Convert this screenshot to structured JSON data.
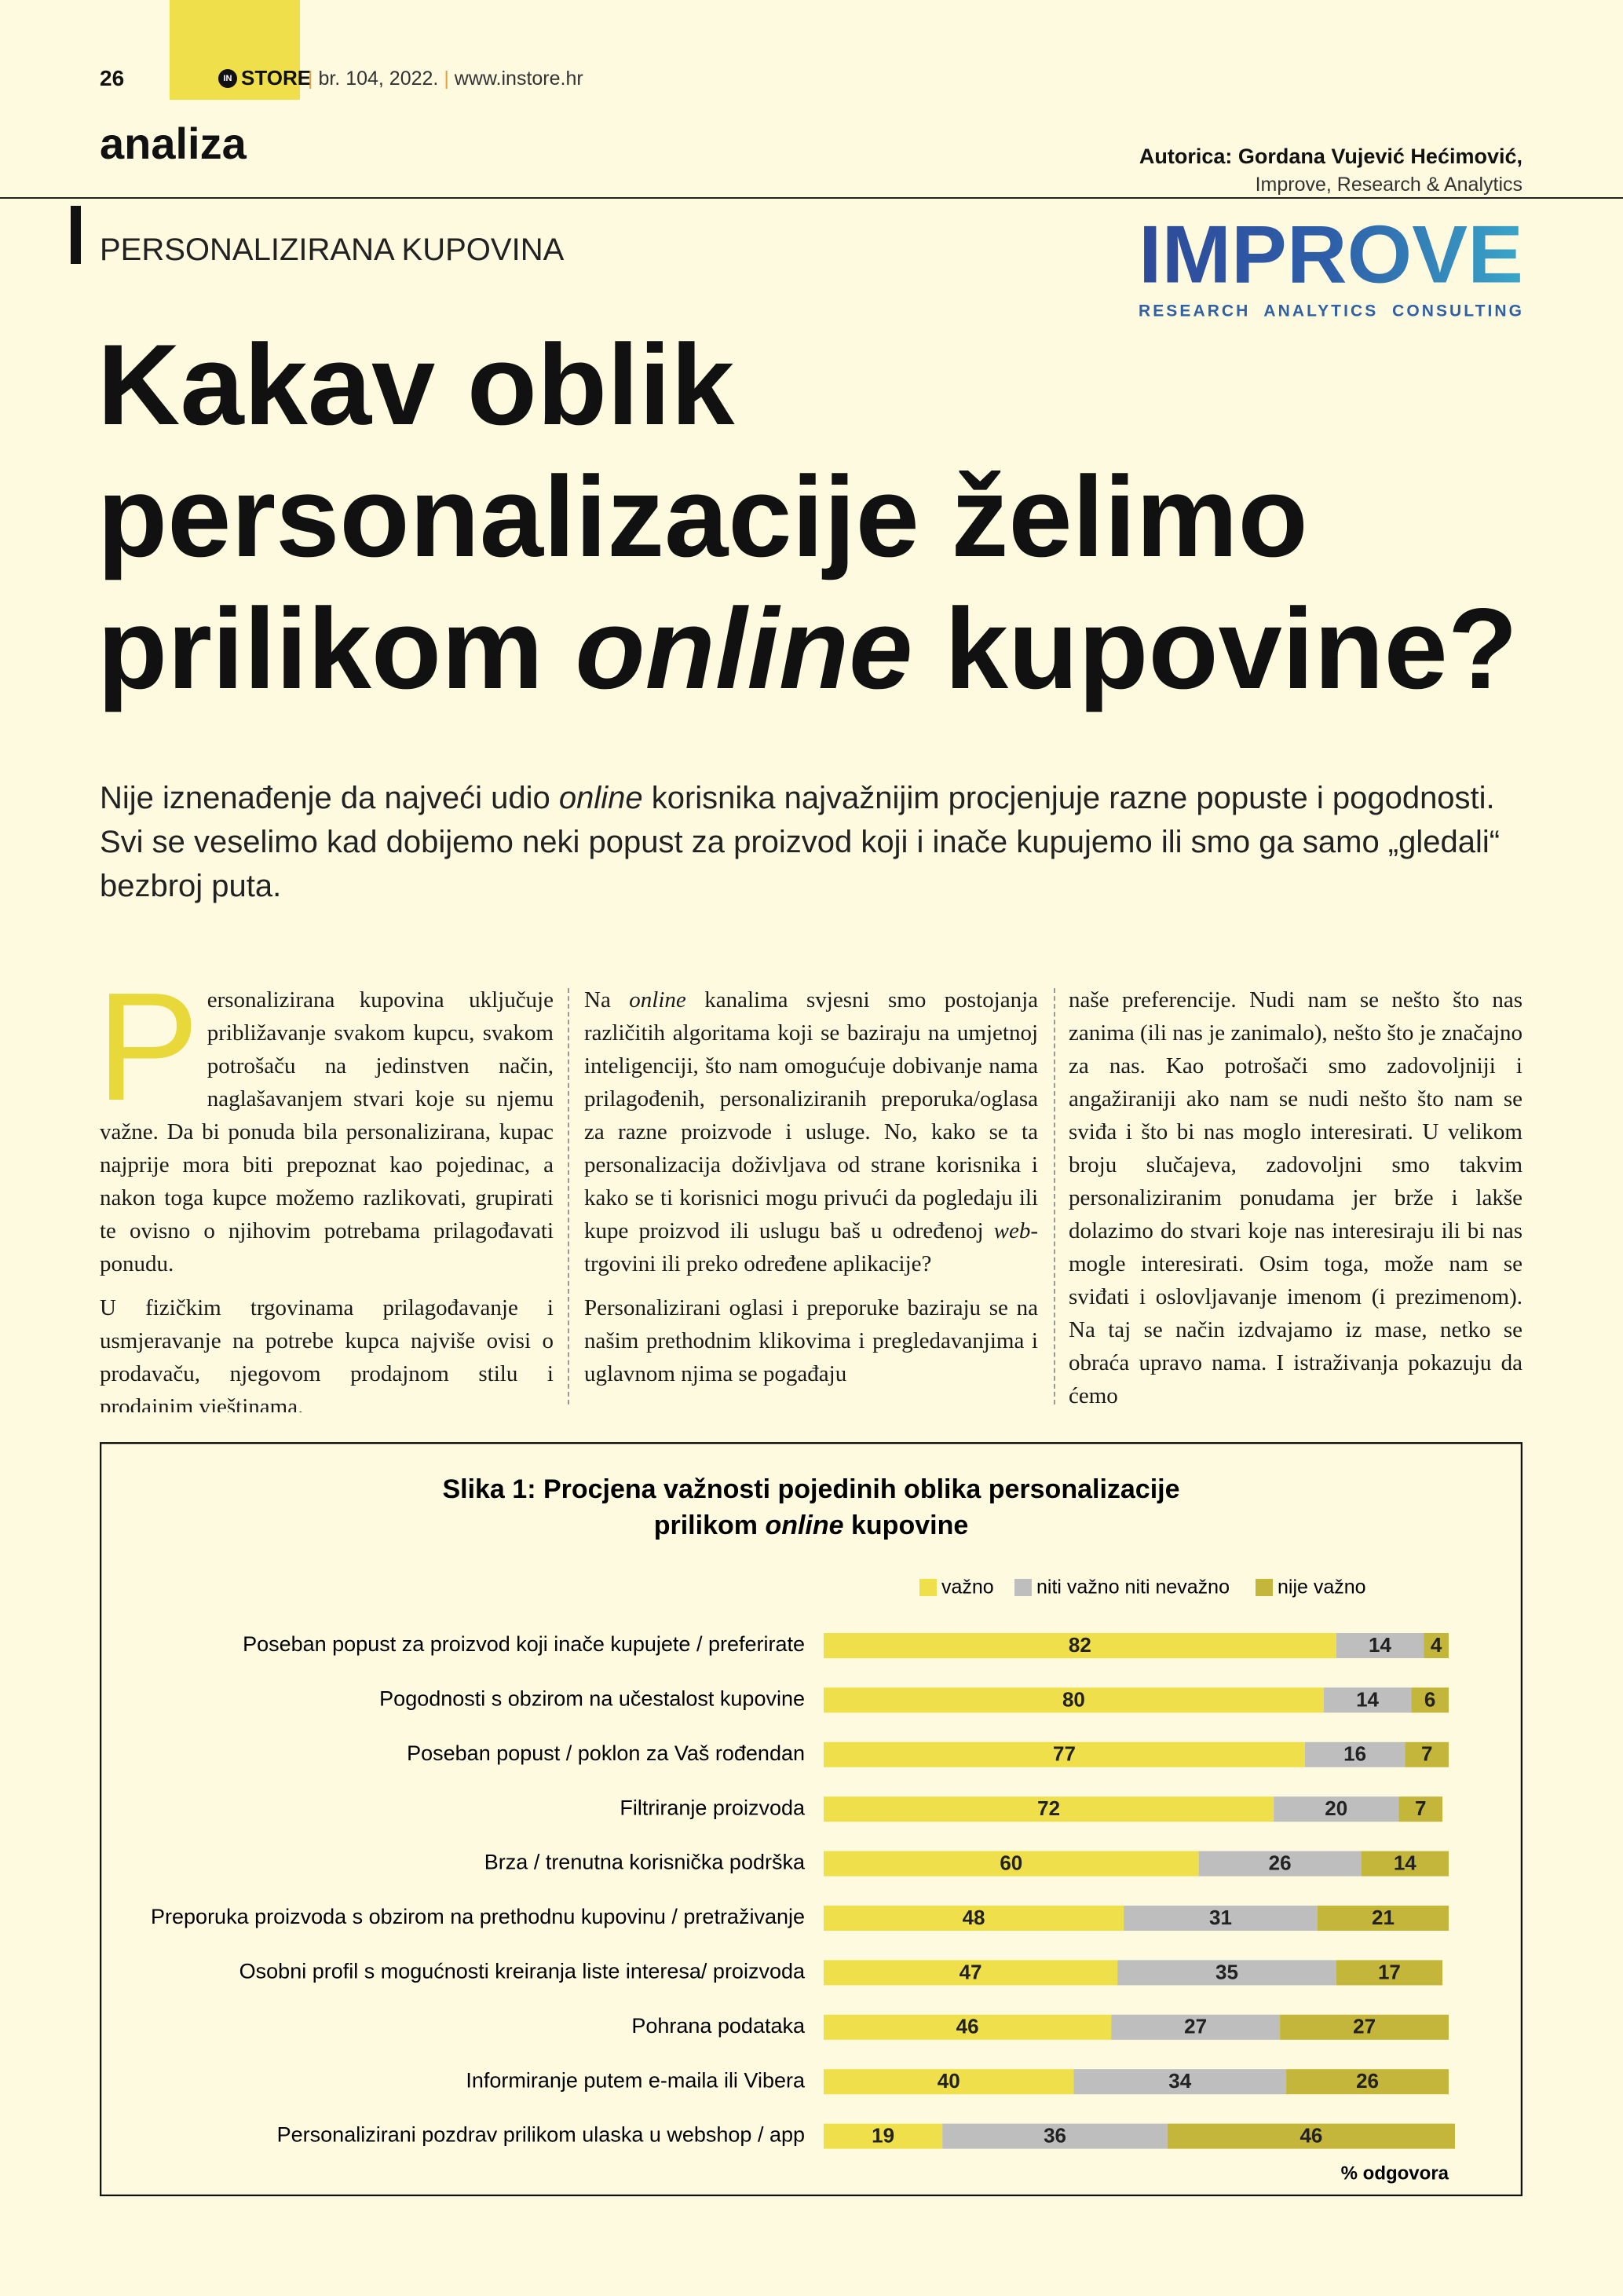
{
  "header": {
    "page_number": "26",
    "logo_in": "IN",
    "logo_store": "STORE",
    "issue": "br. 104, 2022.",
    "website": "www.instore.hr"
  },
  "section": "analiza",
  "author": {
    "name": "Autorica: Gordana Vujević Hećimović,",
    "affiliation": "Improve, Research & Analytics"
  },
  "kicker": "PERSONALIZIRANA KUPOVINA",
  "logo": {
    "name": "IMPROVE",
    "tagline": "RESEARCH  ANALYTICS  CONSULTING"
  },
  "headline": {
    "line1": "Kakav oblik",
    "line2": "personalizacije želimo",
    "line3": [
      "prilikom ",
      "online",
      " kupovine?"
    ]
  },
  "lead": [
    "Nije iznenađenje da najveći udio ",
    "online",
    " korisnika najvažnijim procjenjuje razne popuste i pogodnosti. Svi se veselimo kad dobijemo neki popust za proizvod koji i inače kupujemo ili smo ga samo „gledali“ bezbroj puta."
  ],
  "columns": [
    [
      [
        "P",
        "ersonalizirana kupovina uključuje približavanje svakom kupcu, svakom potrošaču na jedinstven način, naglašavanjem stvari koje su njemu važne. Da bi ponuda bila personalizirana, kupac najprije mora biti prepoznat kao pojedinac, a nakon toga kupce možemo razlikovati, grupirati te ovisno o njihovim potrebama prilagođavati ponudu."
      ],
      [
        "U fizičkim trgovinama prilagođavanje i usmjeravanje na potrebe kupca najviše ovisi o prodavaču, njegovom prodajnom stilu i prodajnim vještinama."
      ]
    ],
    [
      [
        "Na ",
        "online",
        " kanalima svjesni smo postojanja različitih algoritama koji se baziraju na umjetnoj inteligenciji, što nam omogućuje dobivanje nama prilagođenih, personaliziranih preporuka/oglasa za razne proizvode i usluge. No, kako se ta personalizacija doživljava od strane korisnika i kako se ti korisnici mogu privući da pogledaju ili kupe proizvod ili uslugu baš u određenoj ",
        "web",
        "-trgovini ili preko određene aplikacije?"
      ],
      [
        "Personalizirani oglasi i preporuke baziraju se na našim prethodnim klikovima i pregledavanjima i uglavnom njima se pogađaju"
      ]
    ],
    [
      [
        "naše preferencije. Nudi nam se nešto što nas zanima (ili nas je zanimalo), nešto što je značajno za nas. Kao potrošači smo zadovoljniji i angažiraniji ako nam se nudi nešto što nam se sviđa i što bi nas moglo interesirati. U velikom broju slučajeva, zadovoljni smo takvim personaliziranim ponudama jer brže i lakše dolazimo do stvari koje nas interesiraju ili bi nas mogle interesirati. Osim toga, može nam se sviđati i oslovljavanje imenom (i prezimenom). Na taj se način izdvajamo iz mase, netko se obraća upravo nama. I istraživanja pokazuju da ćemo"
      ]
    ]
  ],
  "chart_data": {
    "type": "stacked-bar-horizontal",
    "title": [
      "Slika 1: Procjena važnosti pojedinih oblika personalizacije",
      "prilikom ",
      "online",
      " kupovine"
    ],
    "categories": [
      "Poseban popust za proizvod koji inače kupujete / preferirate",
      "Pogodnosti s obzirom na učestalost kupovine",
      "Poseban popust / poklon za Vaš rođendan",
      "Filtriranje proizvoda",
      "Brza / trenutna korisnička podrška",
      "Preporuka proizvoda s obzirom na prethodnu kupovinu / pretraživanje",
      "Osobni profil s mogućnosti kreiranja liste interesa/ proizvoda",
      "Pohrana podataka",
      "Informiranje putem e-maila ili Vibera",
      "Personalizirani pozdrav prilikom ulaska u webshop / app"
    ],
    "series": [
      {
        "name": "važno",
        "color": "#efe04b",
        "values": [
          82,
          80,
          77,
          72,
          60,
          48,
          47,
          46,
          40,
          19
        ]
      },
      {
        "name": "niti važno niti nevažno",
        "color": "#bebebe",
        "values": [
          14,
          14,
          16,
          20,
          26,
          31,
          35,
          27,
          34,
          36
        ]
      },
      {
        "name": "nije važno",
        "color": "#c4b63a",
        "values": [
          4,
          6,
          7,
          7,
          14,
          21,
          17,
          27,
          26,
          46
        ]
      }
    ],
    "note": "% odgovora"
  }
}
